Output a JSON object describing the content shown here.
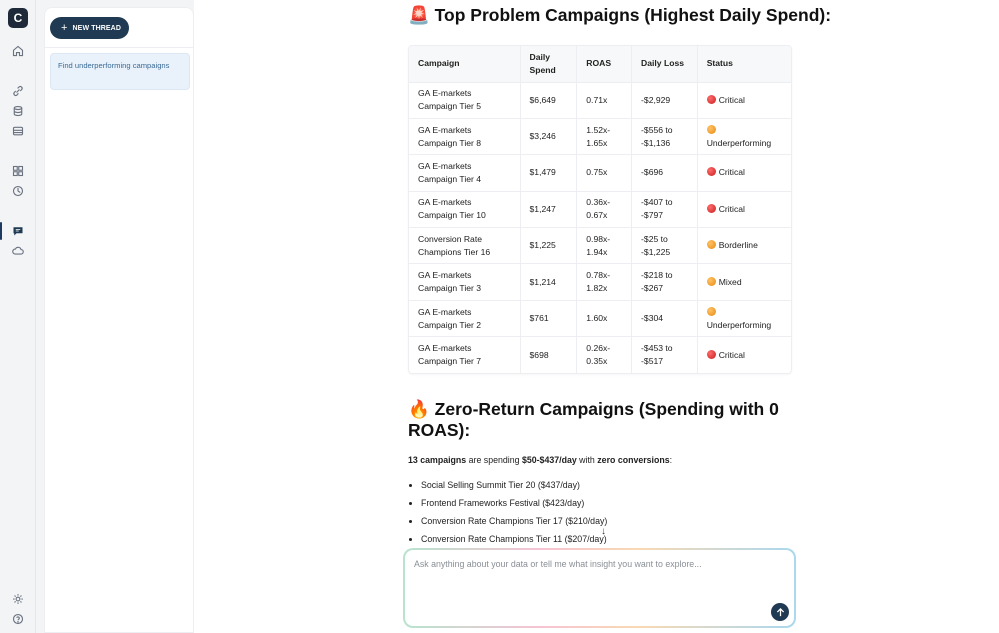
{
  "rail": {
    "logo_letter": "C",
    "icons": [
      "home-icon",
      "integrations-icon",
      "database-icon",
      "storage-icon",
      "dashboard-icon",
      "history-icon",
      "chat-icon",
      "cloud-icon",
      "settings-icon",
      "help-icon"
    ]
  },
  "sidebar": {
    "new_thread_label": "NEW THREAD",
    "threads": [
      {
        "title": "Find underperforming campaigns"
      }
    ]
  },
  "main": {
    "top_heading": "🚨 Top Problem Campaigns (Highest Daily Spend):",
    "table": {
      "headers": [
        "Campaign",
        "Daily Spend",
        "ROAS",
        "Daily Loss",
        "Status"
      ],
      "rows": [
        {
          "campaign": "GA E-markets Campaign Tier 5",
          "spend": "$6,649",
          "roas": "0.71x",
          "loss": "-$2,929",
          "status": "Critical",
          "status_color": "red"
        },
        {
          "campaign": "GA E-markets Campaign Tier 8",
          "spend": "$3,246",
          "roas": "1.52x-1.65x",
          "loss": "-$556 to -$1,136",
          "status": "Underperforming",
          "status_color": "orange"
        },
        {
          "campaign": "GA E-markets Campaign Tier 4",
          "spend": "$1,479",
          "roas": "0.75x",
          "loss": "-$696",
          "status": "Critical",
          "status_color": "red"
        },
        {
          "campaign": "GA E-markets Campaign Tier 10",
          "spend": "$1,247",
          "roas": "0.36x-0.67x",
          "loss": "-$407 to -$797",
          "status": "Critical",
          "status_color": "red"
        },
        {
          "campaign": "Conversion Rate Champions Tier 16",
          "spend": "$1,225",
          "roas": "0.98x-1.94x",
          "loss": "-$25 to -$1,225",
          "status": "Borderline",
          "status_color": "orange"
        },
        {
          "campaign": "GA E-markets Campaign Tier 3",
          "spend": "$1,214",
          "roas": "0.78x-1.82x",
          "loss": "-$218 to -$267",
          "status": "Mixed",
          "status_color": "orange"
        },
        {
          "campaign": "GA E-markets Campaign Tier 2",
          "spend": "$761",
          "roas": "1.60x",
          "loss": "-$304",
          "status": "Underperforming",
          "status_color": "orange"
        },
        {
          "campaign": "GA E-markets Campaign Tier 7",
          "spend": "$698",
          "roas": "0.26x-0.35x",
          "loss": "-$453 to -$517",
          "status": "Critical",
          "status_color": "red"
        }
      ]
    },
    "zero_heading": "🔥 Zero-Return Campaigns (Spending with 0 ROAS):",
    "summary": {
      "count": "13 campaigns",
      "text1": " are spending ",
      "range": "$50-$437/day",
      "text2": " with ",
      "zero": "zero conversions",
      "text3": ":"
    },
    "zero_list": [
      "Social Selling Summit Tier 20 ($437/day)",
      "Frontend Frameworks Festival ($423/day)",
      "Conversion Rate Champions Tier 17 ($210/day)",
      "Conversion Rate Champions Tier 11 ($207/day)"
    ]
  },
  "chat": {
    "placeholder": "Ask anything about your data or tell me what insight you want to explore..."
  },
  "colors": {
    "primary": "#1f3a52",
    "critical": "#d62828",
    "warning": "#f0a020",
    "accent_light": "#e9f2fb"
  }
}
